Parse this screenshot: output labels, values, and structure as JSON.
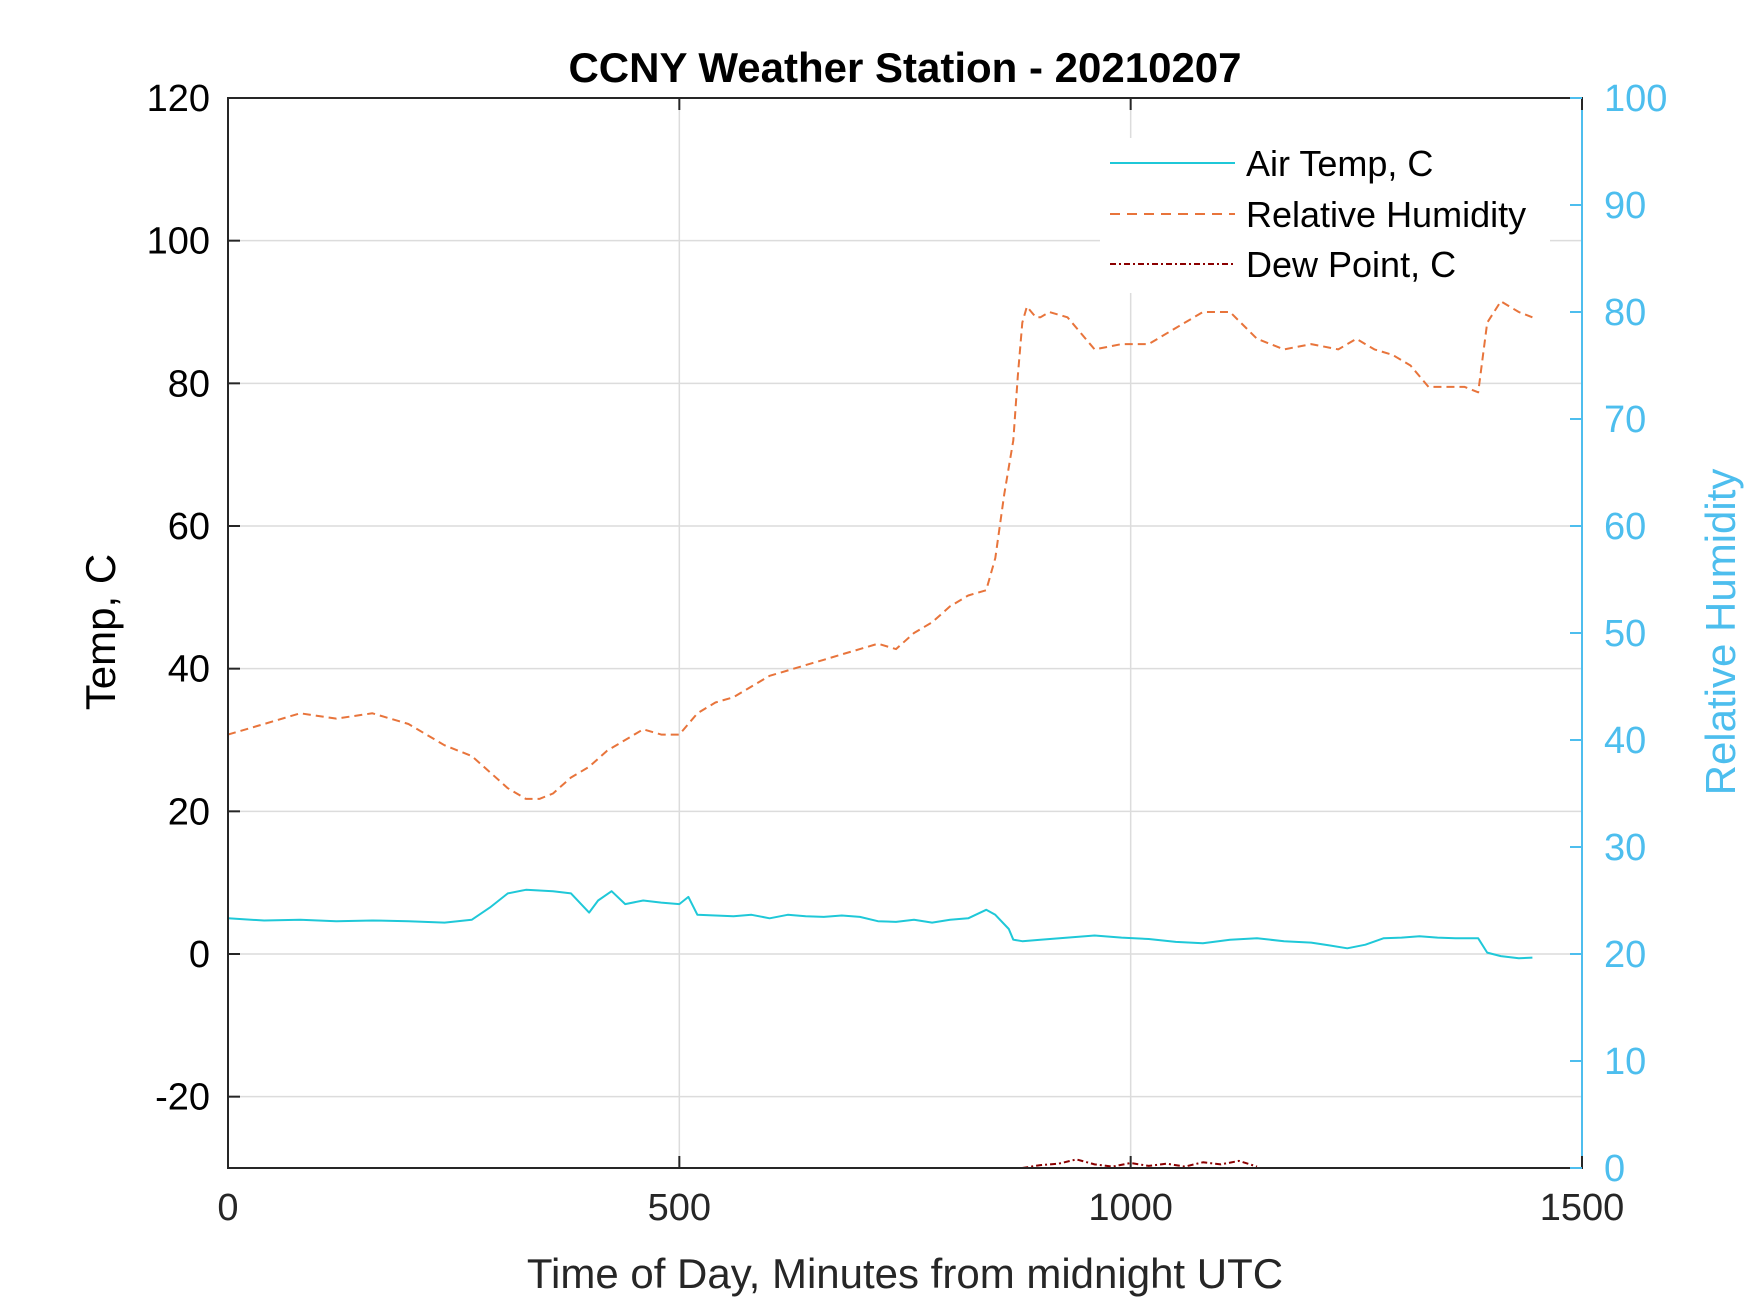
{
  "chart_data": {
    "type": "line",
    "title": "CCNY Weather Station - 20210207",
    "xlabel": "Time of Day, Minutes from midnight UTC",
    "ylabel_left": "Temp, C",
    "ylabel_right": "Relative Humidity",
    "xlim": [
      0,
      1500
    ],
    "ylim_left": [
      -30,
      120
    ],
    "ylim_right": [
      0,
      100
    ],
    "x_ticks": [
      0,
      500,
      1000,
      1500
    ],
    "y_ticks_left": [
      -20,
      0,
      20,
      40,
      60,
      80,
      100,
      120
    ],
    "y_ticks_right": [
      0,
      10,
      20,
      30,
      40,
      50,
      60,
      70,
      80,
      90,
      100
    ],
    "x_tick_labels": [
      "0",
      "500",
      "1000",
      "1500"
    ],
    "y_tick_labels_left": [
      "-20",
      "0",
      "20",
      "40",
      "60",
      "80",
      "100",
      "120"
    ],
    "y_tick_labels_right": [
      "0",
      "10",
      "20",
      "30",
      "40",
      "50",
      "60",
      "70",
      "80",
      "90",
      "100"
    ],
    "grid": true,
    "legend_position": "top-right",
    "colors": {
      "air_temp": "#1fc8d8",
      "relative_humidity": "#e8743b",
      "dew_point": "#8b0000",
      "right_axis": "#4dbeee",
      "grid": "#dcdcdc"
    },
    "series": [
      {
        "name": "Air Temp, C",
        "axis": "left",
        "style": "solid",
        "x": [
          0,
          40,
          80,
          120,
          160,
          200,
          240,
          270,
          290,
          310,
          330,
          360,
          380,
          400,
          410,
          425,
          440,
          460,
          480,
          500,
          510,
          520,
          540,
          560,
          580,
          600,
          620,
          640,
          660,
          680,
          700,
          720,
          740,
          760,
          780,
          800,
          820,
          840,
          850,
          865,
          870,
          880,
          900,
          930,
          960,
          990,
          1020,
          1050,
          1080,
          1110,
          1140,
          1170,
          1200,
          1220,
          1240,
          1260,
          1280,
          1300,
          1320,
          1340,
          1360,
          1385,
          1395,
          1410,
          1430,
          1445
        ],
        "y": [
          5,
          4.7,
          4.8,
          4.6,
          4.7,
          4.6,
          4.4,
          4.8,
          6.5,
          8.5,
          9,
          8.8,
          8.5,
          5.8,
          7.5,
          8.8,
          7,
          7.5,
          7.2,
          7,
          8,
          5.5,
          5.4,
          5.3,
          5.5,
          5,
          5.5,
          5.3,
          5.2,
          5.4,
          5.2,
          4.6,
          4.5,
          4.8,
          4.4,
          4.8,
          5,
          6.2,
          5.5,
          3.5,
          2,
          1.8,
          2,
          2.3,
          2.6,
          2.3,
          2.1,
          1.7,
          1.5,
          2,
          2.2,
          1.8,
          1.6,
          1.2,
          0.8,
          1.3,
          2.2,
          2.3,
          2.5,
          2.3,
          2.2,
          2.2,
          0.2,
          -0.3,
          -0.6,
          -0.5
        ]
      },
      {
        "name": "Relative Humidity",
        "axis": "right",
        "style": "dashed",
        "x": [
          0,
          40,
          80,
          120,
          160,
          200,
          240,
          270,
          290,
          310,
          330,
          345,
          360,
          380,
          400,
          420,
          440,
          460,
          480,
          500,
          520,
          540,
          560,
          580,
          600,
          620,
          640,
          660,
          680,
          700,
          720,
          740,
          760,
          780,
          800,
          820,
          840,
          850,
          860,
          870,
          875,
          880,
          885,
          890,
          895,
          900,
          910,
          930,
          960,
          990,
          1020,
          1050,
          1080,
          1110,
          1140,
          1170,
          1200,
          1230,
          1250,
          1270,
          1290,
          1310,
          1330,
          1350,
          1370,
          1385,
          1395,
          1410,
          1430,
          1445
        ],
        "y": [
          40.5,
          41.5,
          42.5,
          42,
          42.5,
          41.5,
          39.5,
          38.5,
          37,
          35.5,
          34.5,
          34.5,
          35,
          36.5,
          37.5,
          39,
          40,
          41,
          40.5,
          40.5,
          42.5,
          43.5,
          44,
          45,
          46,
          46.5,
          47,
          47.5,
          48,
          48.5,
          49,
          48.5,
          50,
          51,
          52.5,
          53.5,
          54,
          57,
          63,
          68,
          74,
          79,
          80.5,
          80,
          79.5,
          79.5,
          80,
          79.5,
          76.5,
          77,
          77,
          78.5,
          80,
          80,
          77.5,
          76.5,
          77,
          76.5,
          77.5,
          76.5,
          76,
          75,
          73,
          73,
          73,
          72.5,
          79,
          81,
          80,
          79.5
        ]
      },
      {
        "name": "Dew Point, C",
        "axis": "left",
        "style": "dash-dot",
        "x": [
          880,
          900,
          920,
          940,
          960,
          980,
          1000,
          1020,
          1040,
          1060,
          1080,
          1100,
          1120,
          1140
        ],
        "y": [
          -30,
          -29.6,
          -29.4,
          -28.8,
          -29.5,
          -29.8,
          -29.3,
          -29.7,
          -29.4,
          -29.8,
          -29.2,
          -29.5,
          -29,
          -29.8
        ]
      }
    ]
  }
}
